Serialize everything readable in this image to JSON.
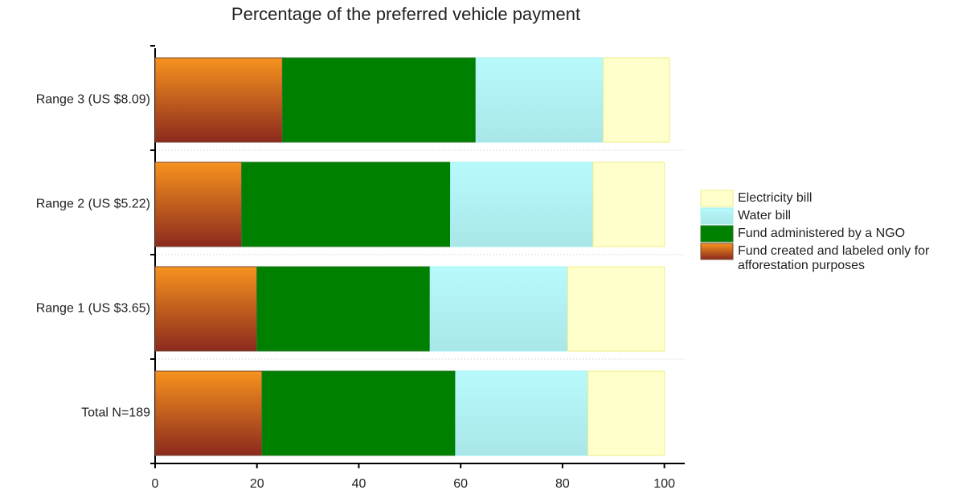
{
  "chart_data": {
    "type": "stacked_bar_horizontal",
    "title": "Percentage of the preferred vehicle payment",
    "categories": [
      "Range 3 (US $8.09)",
      "Range 2 (US $5.22)",
      "Range 1 (US $3.65)",
      "Total N=189"
    ],
    "series": [
      {
        "name": "Fund created and labeled only for afforestation purposes",
        "color": "#f7931e",
        "values": [
          25,
          17,
          20,
          21
        ]
      },
      {
        "name": "Fund administered by a NGO",
        "color": "#008000",
        "values": [
          38,
          41,
          34,
          38
        ]
      },
      {
        "name": "Water bill",
        "color": "#b8fafc",
        "values": [
          25,
          28,
          27,
          26
        ]
      },
      {
        "name": "Electricity bill",
        "color": "#ffffcc",
        "values": [
          13,
          14,
          19,
          15
        ]
      }
    ],
    "xlim": [
      0,
      104
    ],
    "xticks": [
      0,
      20,
      40,
      60,
      80,
      100
    ],
    "grid": true
  }
}
